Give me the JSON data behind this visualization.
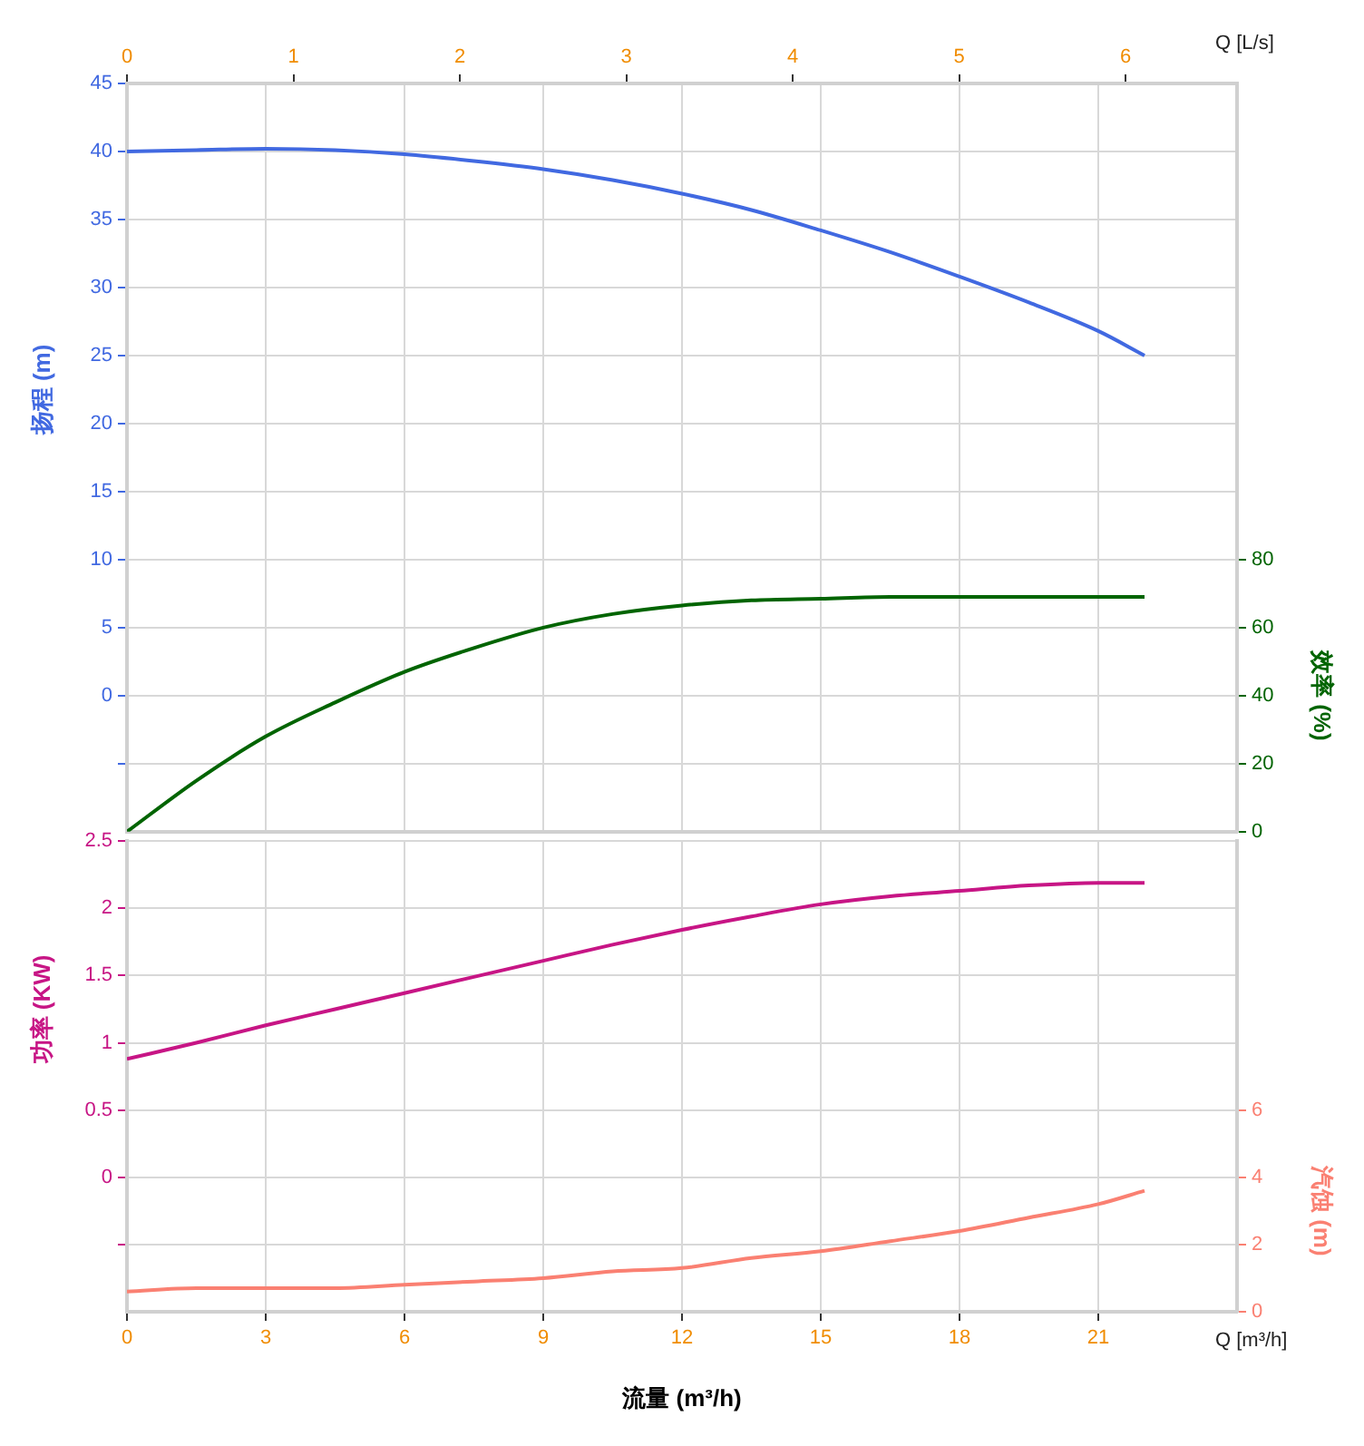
{
  "chart_data": [
    {
      "type": "line",
      "x2label": "Q [L/s]",
      "ylabel": "扬程 (m)",
      "y2label": "效率 (%)",
      "x": [
        0,
        1.5,
        3,
        4.5,
        6,
        7.5,
        9,
        10.5,
        12,
        13.5,
        15,
        16.5,
        18,
        19.5,
        21,
        22
      ],
      "xlim": [
        0,
        24
      ],
      "xticks": [
        0,
        3,
        6,
        9,
        12,
        15,
        18,
        21
      ],
      "x2lim": [
        0,
        6.67
      ],
      "x2ticks": [
        0,
        1,
        2,
        3,
        4,
        5,
        6
      ],
      "tick_labels": "y",
      "ylim": [
        -10,
        45
      ],
      "yticks": [
        {
          "value": -5,
          "label": null
        },
        0,
        5,
        10,
        15,
        20,
        25,
        30,
        35,
        40,
        45
      ],
      "y2lim": [
        0,
        220
      ],
      "y2ticks": [
        0,
        20,
        40,
        60,
        80
      ],
      "grid": true,
      "marker": "none",
      "line_style": "solid",
      "series": [
        {
          "color": "#4169e1",
          "values": [
            40.0,
            40.1,
            40.2,
            40.1,
            39.8,
            39.3,
            38.7,
            37.9,
            36.9,
            35.7,
            34.2,
            32.6,
            30.8,
            28.9,
            26.8,
            25.0
          ]
        },
        {
          "color": "#006400",
          "axis": "y2",
          "values": [
            0,
            15,
            28,
            38,
            47,
            54,
            60,
            64,
            66.5,
            68,
            68.5,
            69,
            69,
            69,
            69,
            69
          ]
        }
      ]
    },
    {
      "type": "line",
      "xlabel": "流量 (m³/h)",
      "ylabel": "功率 (KW)",
      "y2label": "汽蚀 (m)",
      "annotations": [
        "Q [m³/h]"
      ],
      "x": [
        0,
        1.5,
        3,
        4.5,
        6,
        7.5,
        9,
        10.5,
        12,
        13.5,
        15,
        16.5,
        18,
        19.5,
        21,
        22
      ],
      "xlim": [
        0,
        24
      ],
      "xticks": [
        0,
        3,
        6,
        9,
        12,
        15,
        18,
        21
      ],
      "ylim": [
        -1,
        2.5
      ],
      "yticks": [
        {
          "value": -0.5,
          "label": null
        },
        0,
        0.5,
        1,
        1.5,
        2,
        2.5
      ],
      "y2lim": [
        0,
        14
      ],
      "y2ticks": [
        0,
        2,
        4,
        6
      ],
      "grid": true,
      "marker": "none",
      "line_style": "solid",
      "series": [
        {
          "color": "#c71585",
          "values": [
            0.88,
            1.0,
            1.13,
            1.25,
            1.37,
            1.49,
            1.61,
            1.73,
            1.84,
            1.94,
            2.03,
            2.09,
            2.13,
            2.17,
            2.19,
            2.19
          ]
        },
        {
          "color": "#fa8072",
          "axis": "y2",
          "values": [
            0.6,
            0.7,
            0.7,
            0.7,
            0.8,
            0.9,
            1.0,
            1.2,
            1.3,
            1.6,
            1.8,
            2.1,
            2.4,
            2.8,
            3.2,
            3.6
          ]
        }
      ]
    }
  ]
}
